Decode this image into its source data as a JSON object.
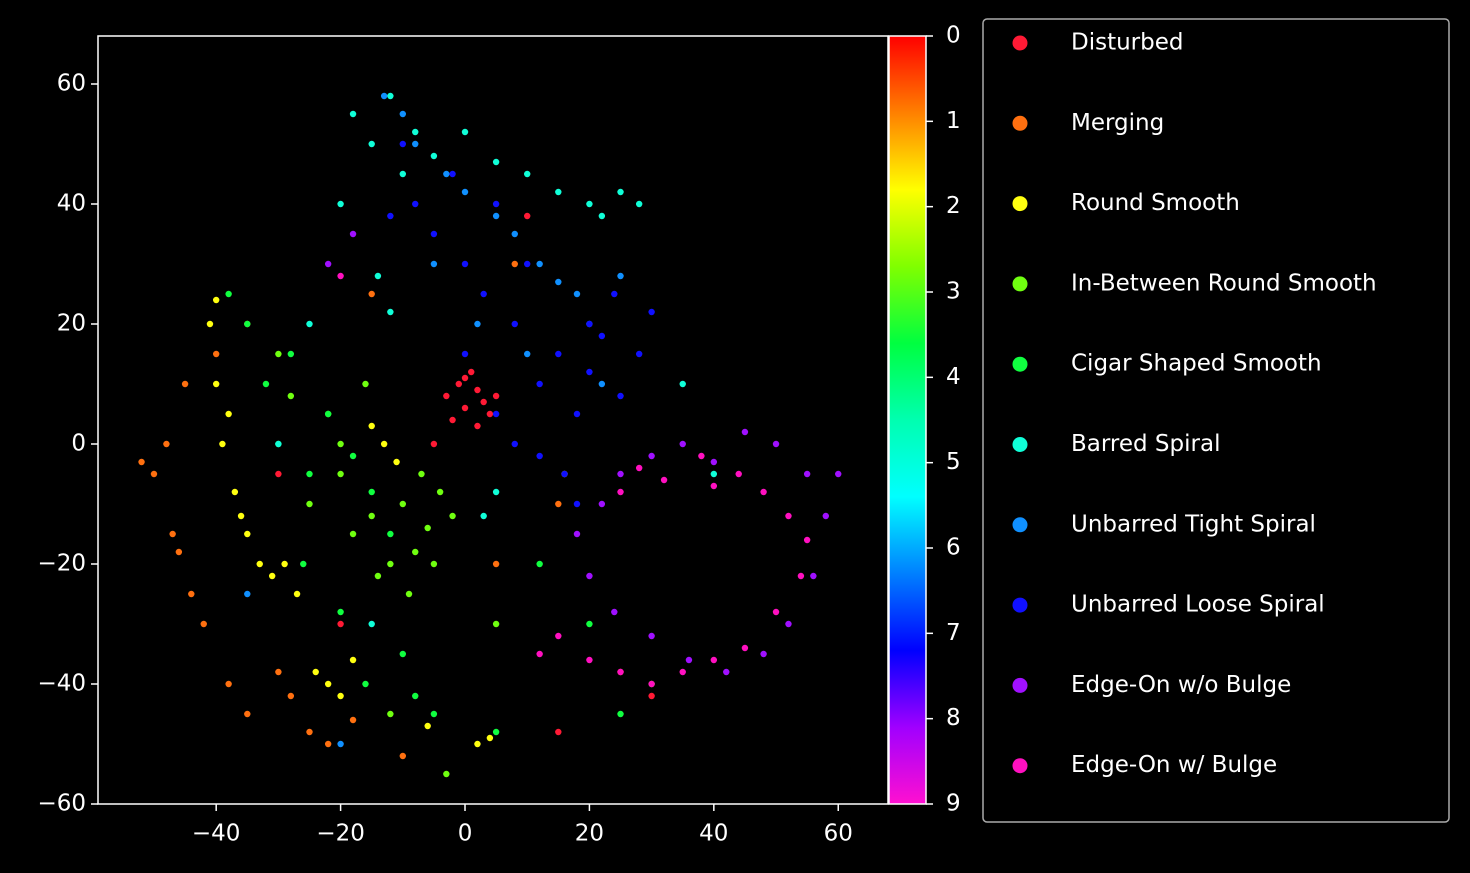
{
  "chart_data": {
    "type": "scatter",
    "xlim": [
      -59,
      68
    ],
    "ylim": [
      -60,
      68
    ],
    "xticks": [
      {
        "value": -40,
        "label": "−40"
      },
      {
        "value": -20,
        "label": "−20"
      },
      0,
      20,
      40,
      60
    ],
    "yticks": [
      {
        "value": -60,
        "label": "−60"
      },
      {
        "value": -40,
        "label": "−40"
      },
      {
        "value": -20,
        "label": "−20"
      },
      0,
      20,
      40,
      60
    ],
    "colorbar": {
      "lim": [
        0,
        9
      ],
      "ticks": [
        0,
        1,
        2,
        3,
        4,
        5,
        6,
        7,
        8,
        9
      ],
      "colors": [
        "#ff0000",
        "#ff8000",
        "#ffff00",
        "#80ff00",
        "#00ff40",
        "#00ffb0",
        "#00ffff",
        "#0080ff",
        "#0000ff",
        "#a000ff",
        "#ff10d0"
      ]
    },
    "legend": "outside-right",
    "series": [
      {
        "name": "Disturbed",
        "color": "#ff1a35",
        "x": [
          -3,
          -1,
          0,
          1,
          2,
          3,
          4,
          -2,
          0,
          2,
          5,
          -5,
          10,
          -20,
          30,
          -30,
          15
        ],
        "y": [
          8,
          10,
          6,
          12,
          9,
          7,
          5,
          4,
          11,
          3,
          8,
          0,
          38,
          -30,
          -42,
          -5,
          -48
        ]
      },
      {
        "name": "Merging",
        "color": "#ff7010",
        "x": [
          -50,
          -48,
          -45,
          -47,
          -44,
          -42,
          -40,
          -38,
          -35,
          -30,
          -28,
          -25,
          -22,
          -18,
          -10,
          5,
          15,
          -35,
          -46,
          -52,
          -15,
          8,
          25
        ],
        "y": [
          -5,
          0,
          10,
          -15,
          -25,
          -30,
          15,
          -40,
          -45,
          -38,
          -42,
          -48,
          -50,
          -46,
          -52,
          -20,
          -10,
          20,
          -18,
          -3,
          25,
          30,
          -38
        ]
      },
      {
        "name": "Round Smooth",
        "color": "#ffff10",
        "x": [
          -41,
          -40,
          -39,
          -38,
          -37,
          -36,
          -35,
          -33,
          -31,
          -29,
          -27,
          -24,
          -22,
          -20,
          -18,
          -15,
          -13,
          -11,
          2,
          4,
          -6,
          16,
          -40
        ],
        "y": [
          20,
          10,
          0,
          5,
          -8,
          -12,
          -15,
          -20,
          -22,
          -20,
          -25,
          -38,
          -40,
          -42,
          -36,
          3,
          0,
          -3,
          -50,
          -49,
          -47,
          -5,
          24
        ]
      },
      {
        "name": "In-Between Round Smooth",
        "color": "#70ff10",
        "x": [
          -25,
          -22,
          -20,
          -18,
          -15,
          -12,
          -10,
          -8,
          -6,
          -4,
          -14,
          -9,
          -5,
          -20,
          -16,
          -7,
          -28,
          -30,
          -2,
          -12,
          30,
          5,
          -3
        ],
        "y": [
          -10,
          5,
          -5,
          -15,
          -12,
          -20,
          -10,
          -18,
          -14,
          -8,
          -22,
          -25,
          -20,
          0,
          10,
          -5,
          8,
          15,
          -12,
          -45,
          -40,
          -30,
          -55
        ]
      },
      {
        "name": "Cigar Shaped Smooth",
        "color": "#10ff40",
        "x": [
          -35,
          -32,
          -28,
          -25,
          -22,
          -18,
          -15,
          -12,
          -30,
          -26,
          -20,
          -38,
          -16,
          -10,
          -5,
          5,
          12,
          20,
          25,
          -8
        ],
        "y": [
          20,
          10,
          15,
          -5,
          5,
          -2,
          -8,
          -15,
          0,
          -20,
          -28,
          25,
          -40,
          -35,
          -45,
          -48,
          -20,
          -30,
          -45,
          -42
        ]
      },
      {
        "name": "Barred Spiral",
        "color": "#10ffd8",
        "x": [
          -18,
          -15,
          -12,
          -10,
          -8,
          -5,
          0,
          5,
          10,
          15,
          20,
          22,
          25,
          28,
          -14,
          -12,
          5,
          -20,
          -25,
          -30,
          3,
          -15,
          35,
          40
        ],
        "y": [
          55,
          50,
          58,
          45,
          52,
          48,
          52,
          47,
          45,
          42,
          40,
          38,
          42,
          40,
          28,
          22,
          -8,
          40,
          20,
          0,
          -12,
          -30,
          10,
          -5
        ]
      },
      {
        "name": "Unbarred Tight Spiral",
        "color": "#1090ff",
        "x": [
          -13,
          -10,
          -8,
          -3,
          0,
          5,
          8,
          12,
          15,
          18,
          20,
          -5,
          2,
          10,
          25,
          22,
          -35,
          -20
        ],
        "y": [
          58,
          55,
          50,
          45,
          42,
          38,
          35,
          30,
          27,
          25,
          20,
          30,
          20,
          15,
          28,
          10,
          -25,
          -50
        ]
      },
      {
        "name": "Unbarred Loose Spiral",
        "color": "#1010ff",
        "x": [
          -10,
          -8,
          -5,
          -2,
          0,
          3,
          5,
          8,
          10,
          12,
          15,
          18,
          20,
          22,
          25,
          28,
          5,
          8,
          12,
          16,
          20,
          24,
          0,
          -12,
          30,
          18
        ],
        "y": [
          50,
          40,
          35,
          45,
          30,
          25,
          40,
          20,
          30,
          10,
          15,
          5,
          12,
          18,
          8,
          15,
          5,
          0,
          -2,
          -5,
          20,
          25,
          15,
          38,
          22,
          -10
        ]
      },
      {
        "name": "Edge-On w/o Bulge",
        "color": "#a010ff",
        "x": [
          22,
          25,
          30,
          35,
          40,
          45,
          50,
          55,
          58,
          56,
          52,
          48,
          42,
          36,
          30,
          24,
          20,
          18,
          -18,
          -22,
          60
        ],
        "y": [
          -10,
          -5,
          -2,
          0,
          -3,
          2,
          0,
          -5,
          -12,
          -22,
          -30,
          -35,
          -38,
          -36,
          -32,
          -28,
          -22,
          -15,
          35,
          30,
          -5
        ]
      },
      {
        "name": "Edge-On w/ Bulge",
        "color": "#ff10c0",
        "x": [
          25,
          28,
          32,
          38,
          44,
          48,
          52,
          55,
          54,
          50,
          45,
          40,
          35,
          30,
          25,
          20,
          15,
          12,
          -20,
          40
        ],
        "y": [
          -8,
          -4,
          -6,
          -2,
          -5,
          -8,
          -12,
          -16,
          -22,
          -28,
          -34,
          -36,
          -38,
          -40,
          -38,
          -36,
          -32,
          -35,
          28,
          -7
        ]
      }
    ]
  }
}
